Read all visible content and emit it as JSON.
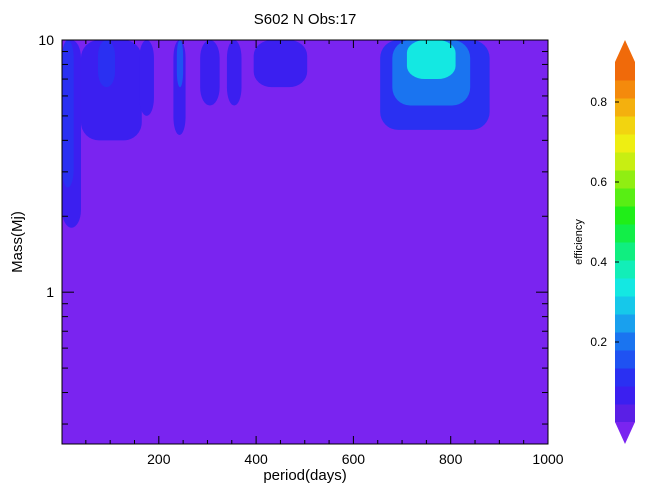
{
  "chart_data": {
    "type": "heatmap",
    "title": "S602 N Obs:17",
    "xlabel": "period(days)",
    "ylabel": "Mass(Mj)",
    "xlim": [
      1,
      1000
    ],
    "ylim": [
      0.25,
      10
    ],
    "yscale": "log",
    "x_ticks": [
      200,
      400,
      600,
      800,
      1000
    ],
    "x_tick_labels": [
      "200",
      "400",
      "600",
      "800",
      "1000"
    ],
    "y_ticks": [
      1,
      10
    ],
    "y_tick_labels": [
      "1",
      "10"
    ],
    "colorbar": {
      "label": "efficiency",
      "range": [
        0.0,
        0.9
      ],
      "ticks": [
        0.2,
        0.4,
        0.6,
        0.8
      ],
      "tick_labels": [
        "0.2",
        "0.4",
        "0.6",
        "0.8"
      ],
      "colors": [
        "#5a1fe6",
        "#3b1ff0",
        "#2a30f2",
        "#1f52f2",
        "#1a74f0",
        "#19a0ee",
        "#16c8ea",
        "#14e8e2",
        "#12eeb8",
        "#10ee80",
        "#12ee48",
        "#20ee18",
        "#58ee14",
        "#90ee12",
        "#c8ee12",
        "#eeee12",
        "#f2d410",
        "#f4b00e",
        "#f48a0c",
        "#f06a0a"
      ],
      "over_color": "#f06a0a",
      "under_color": "#7a24f0"
    },
    "background_level": 0.0,
    "regions": [
      {
        "period": [
          1,
          40
        ],
        "mass": [
          1.8,
          10
        ],
        "efficiency": 0.07
      },
      {
        "period": [
          1,
          25
        ],
        "mass": [
          2.6,
          10
        ],
        "efficiency": 0.1
      },
      {
        "period": [
          40,
          165
        ],
        "mass": [
          4.0,
          10
        ],
        "efficiency": 0.05
      },
      {
        "period": [
          75,
          110
        ],
        "mass": [
          6.5,
          10
        ],
        "efficiency": 0.12
      },
      {
        "period": [
          160,
          190
        ],
        "mass": [
          5.0,
          10
        ],
        "efficiency": 0.08
      },
      {
        "period": [
          230,
          255
        ],
        "mass": [
          4.2,
          10
        ],
        "efficiency": 0.06
      },
      {
        "period": [
          237,
          250
        ],
        "mass": [
          6.5,
          10
        ],
        "efficiency": 0.14
      },
      {
        "period": [
          285,
          325
        ],
        "mass": [
          5.5,
          10
        ],
        "efficiency": 0.05
      },
      {
        "period": [
          340,
          370
        ],
        "mass": [
          5.5,
          10
        ],
        "efficiency": 0.05
      },
      {
        "period": [
          395,
          505
        ],
        "mass": [
          6.5,
          10
        ],
        "efficiency": 0.05
      },
      {
        "period": [
          655,
          880
        ],
        "mass": [
          4.4,
          10
        ],
        "efficiency": 0.1
      },
      {
        "period": [
          680,
          840
        ],
        "mass": [
          5.5,
          10
        ],
        "efficiency": 0.2
      },
      {
        "period": [
          710,
          810
        ],
        "mass": [
          7.0,
          10
        ],
        "efficiency": 0.33
      }
    ]
  }
}
